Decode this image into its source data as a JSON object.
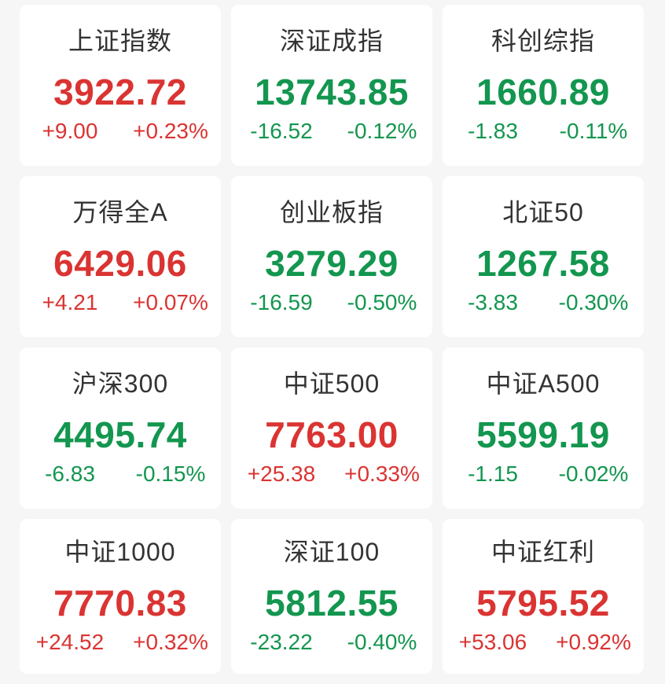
{
  "colors": {
    "up": "#da3432",
    "down": "#13964f",
    "title": "#333333",
    "background": "#f6f6f7",
    "card_background": "#ffffff"
  },
  "indices": [
    {
      "name": "上证指数",
      "value": "3922.72",
      "change": "+9.00",
      "change_pct": "+0.23%",
      "direction": "up"
    },
    {
      "name": "深证成指",
      "value": "13743.85",
      "change": "-16.52",
      "change_pct": "-0.12%",
      "direction": "down"
    },
    {
      "name": "科创综指",
      "value": "1660.89",
      "change": "-1.83",
      "change_pct": "-0.11%",
      "direction": "down"
    },
    {
      "name": "万得全A",
      "value": "6429.06",
      "change": "+4.21",
      "change_pct": "+0.07%",
      "direction": "up"
    },
    {
      "name": "创业板指",
      "value": "3279.29",
      "change": "-16.59",
      "change_pct": "-0.50%",
      "direction": "down"
    },
    {
      "name": "北证50",
      "value": "1267.58",
      "change": "-3.83",
      "change_pct": "-0.30%",
      "direction": "down"
    },
    {
      "name": "沪深300",
      "value": "4495.74",
      "change": "-6.83",
      "change_pct": "-0.15%",
      "direction": "down"
    },
    {
      "name": "中证500",
      "value": "7763.00",
      "change": "+25.38",
      "change_pct": "+0.33%",
      "direction": "up"
    },
    {
      "name": "中证A500",
      "value": "5599.19",
      "change": "-1.15",
      "change_pct": "-0.02%",
      "direction": "down"
    },
    {
      "name": "中证1000",
      "value": "7770.83",
      "change": "+24.52",
      "change_pct": "+0.32%",
      "direction": "up"
    },
    {
      "name": "深证100",
      "value": "5812.55",
      "change": "-23.22",
      "change_pct": "-0.40%",
      "direction": "down"
    },
    {
      "name": "中证红利",
      "value": "5795.52",
      "change": "+53.06",
      "change_pct": "+0.92%",
      "direction": "up"
    }
  ]
}
